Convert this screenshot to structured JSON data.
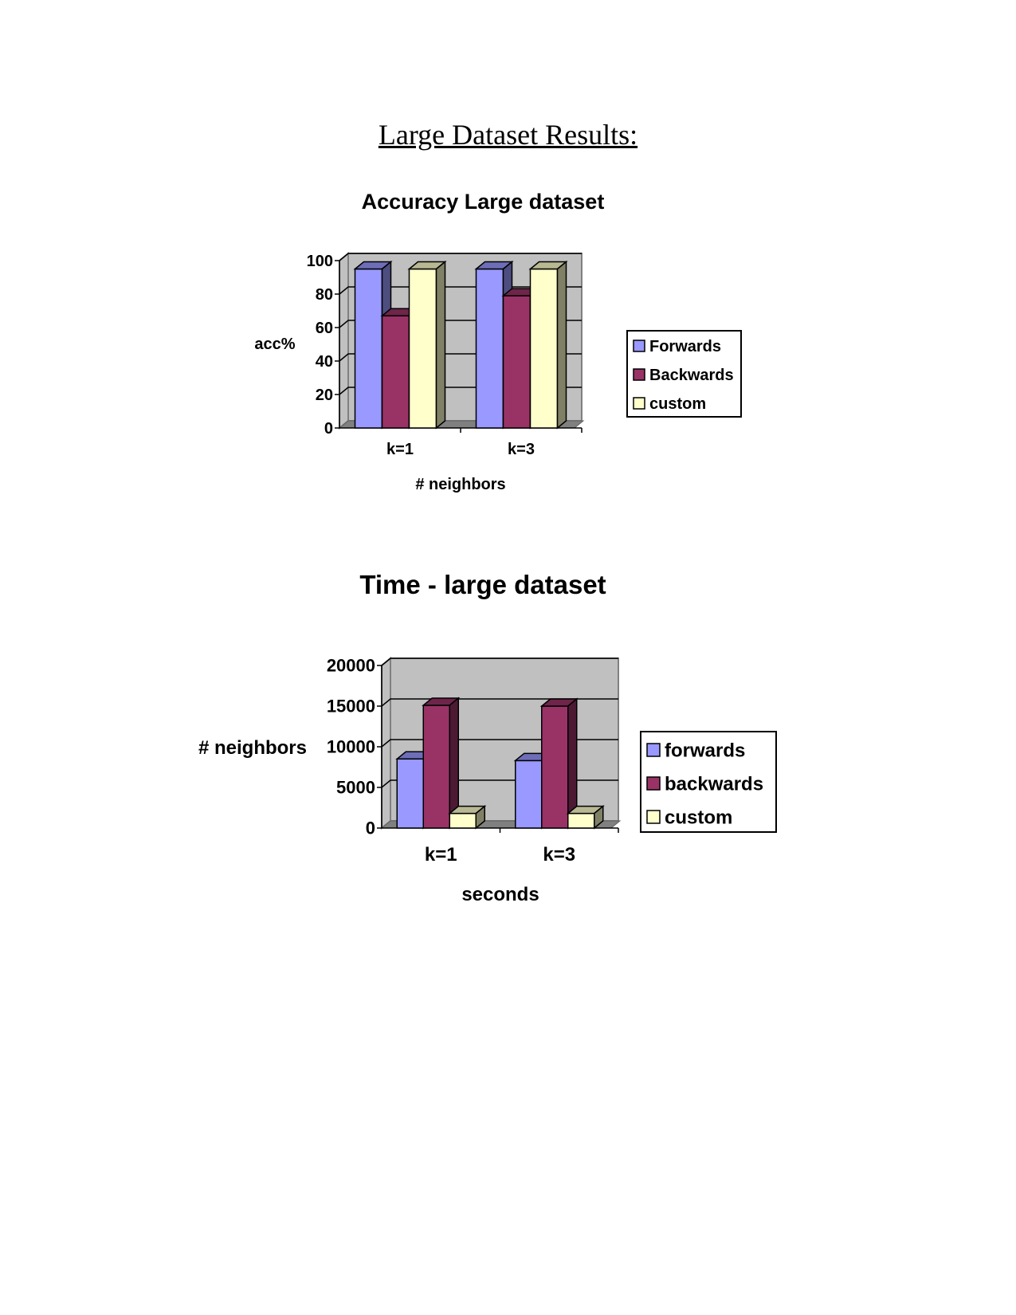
{
  "page": {
    "title": "Large Dataset Results:"
  },
  "charts": [
    {
      "id": "accuracy",
      "chart_data": {
        "type": "bar",
        "title": "Accuracy Large dataset",
        "xlabel": "# neighbors",
        "ylabel": "acc%",
        "categories": [
          "k=1",
          "k=3"
        ],
        "series": [
          {
            "name": "Forwards",
            "values": [
              95,
              95
            ],
            "color": "#9999ff"
          },
          {
            "name": "Backwards",
            "values": [
              67,
              79
            ],
            "color": "#993366"
          },
          {
            "name": "custom",
            "values": [
              95,
              95
            ],
            "color": "#ffffcc"
          }
        ],
        "ylim": [
          0,
          100
        ],
        "yticks": [
          "0",
          "20",
          "40",
          "60",
          "80",
          "100"
        ],
        "grid": true,
        "legend": "right",
        "style": "3d-clustered-column"
      }
    },
    {
      "id": "time",
      "chart_data": {
        "type": "bar",
        "title": "Time - large dataset",
        "xlabel": "seconds",
        "ylabel": "# neighbors",
        "categories": [
          "k=1",
          "k=3"
        ],
        "series": [
          {
            "name": "forwards",
            "values": [
              8500,
              8300
            ],
            "color": "#9999ff"
          },
          {
            "name": "backwards",
            "values": [
              15100,
              15000
            ],
            "color": "#993366"
          },
          {
            "name": "custom",
            "values": [
              1800,
              1800
            ],
            "color": "#ffffcc"
          }
        ],
        "ylim": [
          0,
          20000
        ],
        "yticks": [
          "0",
          "5000",
          "10000",
          "15000",
          "20000"
        ],
        "grid": true,
        "legend": "right",
        "style": "3d-clustered-column"
      }
    }
  ]
}
